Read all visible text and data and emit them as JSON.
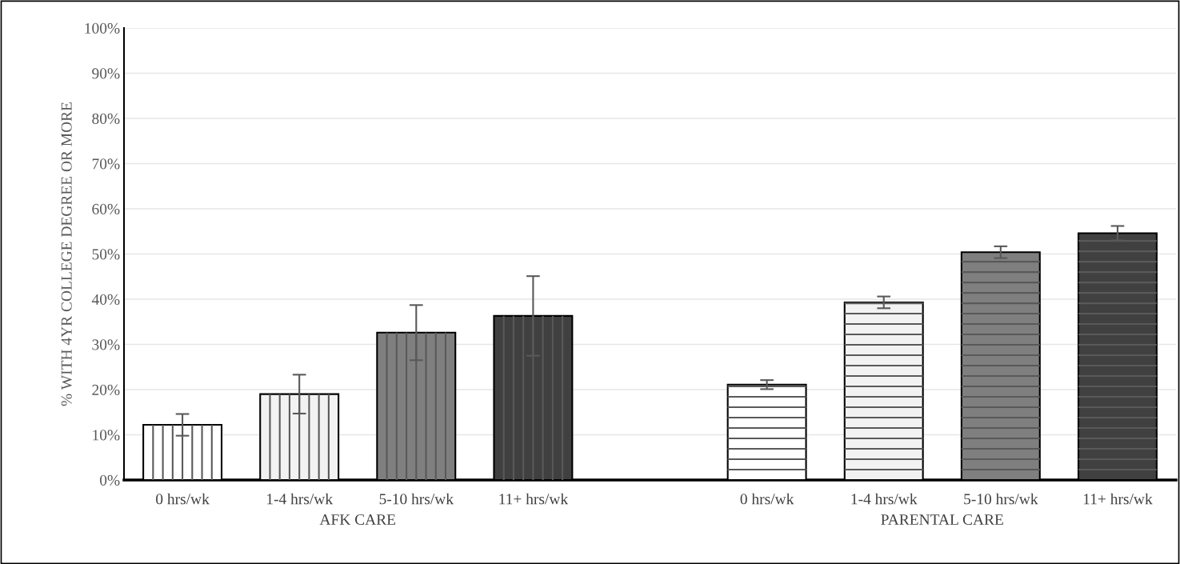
{
  "chart_data": {
    "type": "bar",
    "ylabel": "% WITH 4YR COLLEGE DEGREE OR MORE",
    "categories": [
      "0 hrs/wk",
      "1-4 hrs/wk",
      "5-10 hrs/wk",
      "11+ hrs/wk",
      null,
      "0 hrs/wk",
      "1-4 hrs/wk",
      "5-10 hrs/wk",
      "11+ hrs/wk"
    ],
    "values": [
      12.2,
      19.0,
      32.6,
      36.3,
      null,
      21.1,
      39.3,
      50.4,
      54.6
    ],
    "errors": [
      2.4,
      4.3,
      6.1,
      8.8,
      null,
      1.0,
      1.3,
      1.3,
      1.6
    ],
    "colors": [
      "#ffffff",
      "#f2f2f2",
      "#7f7f7f",
      "#404040",
      null,
      "#ffffff",
      "#f2f2f2",
      "#7f7f7f",
      "#404040"
    ],
    "annotations": [
      "AFK CARE",
      "PARENTAL CARE"
    ],
    "ylim": [
      0,
      100
    ],
    "yticks": [
      {
        "value": 0,
        "label": "0%"
      },
      {
        "value": 10,
        "label": "10%"
      },
      {
        "value": 20,
        "label": "20%"
      },
      {
        "value": 30,
        "label": "30%"
      },
      {
        "value": 40,
        "label": "40%"
      },
      {
        "value": 50,
        "label": "50%"
      },
      {
        "value": 60,
        "label": "60%"
      },
      {
        "value": 70,
        "label": "70%"
      },
      {
        "value": 80,
        "label": "80%"
      },
      {
        "value": 90,
        "label": "90%"
      },
      {
        "value": 100,
        "label": "100%"
      }
    ],
    "grid": "y",
    "legend": false
  }
}
